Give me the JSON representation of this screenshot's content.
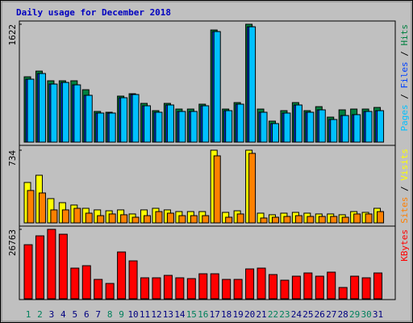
{
  "title": "Daily usage for December 2018",
  "chart_data": [
    {
      "type": "bar",
      "ylim": [
        0,
        1622
      ],
      "yticks": [
        1622
      ],
      "legend_separator": " / ",
      "series": [
        {
          "name": "Hits",
          "color": "#008040",
          "values": [
            899,
            977,
            844,
            844,
            844,
            721,
            422,
            411,
            633,
            666,
            533,
            433,
            533,
            455,
            455,
            522,
            1543,
            455,
            544,
            1622,
            455,
            289,
            433,
            544,
            433,
            488,
            344,
            444,
            455,
            455,
            477
          ]
        },
        {
          "name": "Files",
          "color": "#0040ff",
          "values": [
            866,
            944,
            799,
            821,
            788,
            644,
            400,
            400,
            611,
            655,
            500,
            411,
            511,
            422,
            422,
            500,
            1521,
            433,
            522,
            1587,
            411,
            255,
            400,
            511,
            411,
            444,
            311,
            366,
            378,
            422,
            433
          ]
        },
        {
          "name": "Pages",
          "color": "#00c0ff",
          "values": [
            866,
            944,
            799,
            821,
            788,
            644,
            400,
            400,
            611,
            655,
            500,
            411,
            511,
            422,
            422,
            500,
            1521,
            433,
            522,
            1587,
            411,
            255,
            400,
            511,
            411,
            444,
            311,
            366,
            378,
            422,
            433
          ]
        }
      ]
    },
    {
      "type": "bar",
      "ylim": [
        0,
        734
      ],
      "yticks": [
        734
      ],
      "legend_separator": " / ",
      "series": [
        {
          "name": "Visits",
          "color": "#ffff00",
          "values": [
            408,
            481,
            245,
            204,
            180,
            147,
            131,
            122,
            131,
            90,
            131,
            147,
            131,
            114,
            114,
            114,
            734,
            106,
            122,
            734,
            98,
            82,
            98,
            106,
            98,
            90,
            90,
            82,
            114,
            106,
            147
          ]
        },
        {
          "name": "Sites",
          "color": "#ff8000",
          "values": [
            327,
            302,
            131,
            131,
            147,
            98,
            73,
            90,
            82,
            57,
            73,
            114,
            98,
            73,
            73,
            73,
            677,
            57,
            90,
            702,
            49,
            57,
            65,
            73,
            65,
            65,
            65,
            57,
            90,
            90,
            114
          ]
        }
      ]
    },
    {
      "type": "bar",
      "ylim": [
        0,
        26763
      ],
      "yticks": [
        26763
      ],
      "categories": [
        "1",
        "2",
        "3",
        "4",
        "5",
        "6",
        "7",
        "8",
        "9",
        "10",
        "11",
        "12",
        "13",
        "14",
        "15",
        "16",
        "17",
        "18",
        "19",
        "20",
        "21",
        "22",
        "23",
        "24",
        "25",
        "26",
        "27",
        "28",
        "29",
        "30",
        "31"
      ],
      "category_colors": [
        "#00805c",
        "#00805c",
        "#000080",
        "#000080",
        "#000080",
        "#000080",
        "#000080",
        "#00805c",
        "#00805c",
        "#000080",
        "#000080",
        "#000080",
        "#000080",
        "#000080",
        "#00805c",
        "#00805c",
        "#000080",
        "#000080",
        "#000080",
        "#000080",
        "#000080",
        "#00805c",
        "#00805c",
        "#000080",
        "#000080",
        "#000080",
        "#000080",
        "#000080",
        "#00805c",
        "#00805c",
        "#000080"
      ],
      "series": [
        {
          "name": "KBytes",
          "color": "#ff0000",
          "values": [
            20836,
            24257,
            26763,
            24880,
            11816,
            12750,
            7464,
            5909,
            18038,
            14617,
            8086,
            8086,
            9019,
            8086,
            7775,
            9641,
            9641,
            7464,
            7464,
            11507,
            11816,
            9330,
            7153,
            8708,
            9952,
            8708,
            10263,
            4354,
            8708,
            8086,
            9952
          ]
        }
      ]
    }
  ]
}
